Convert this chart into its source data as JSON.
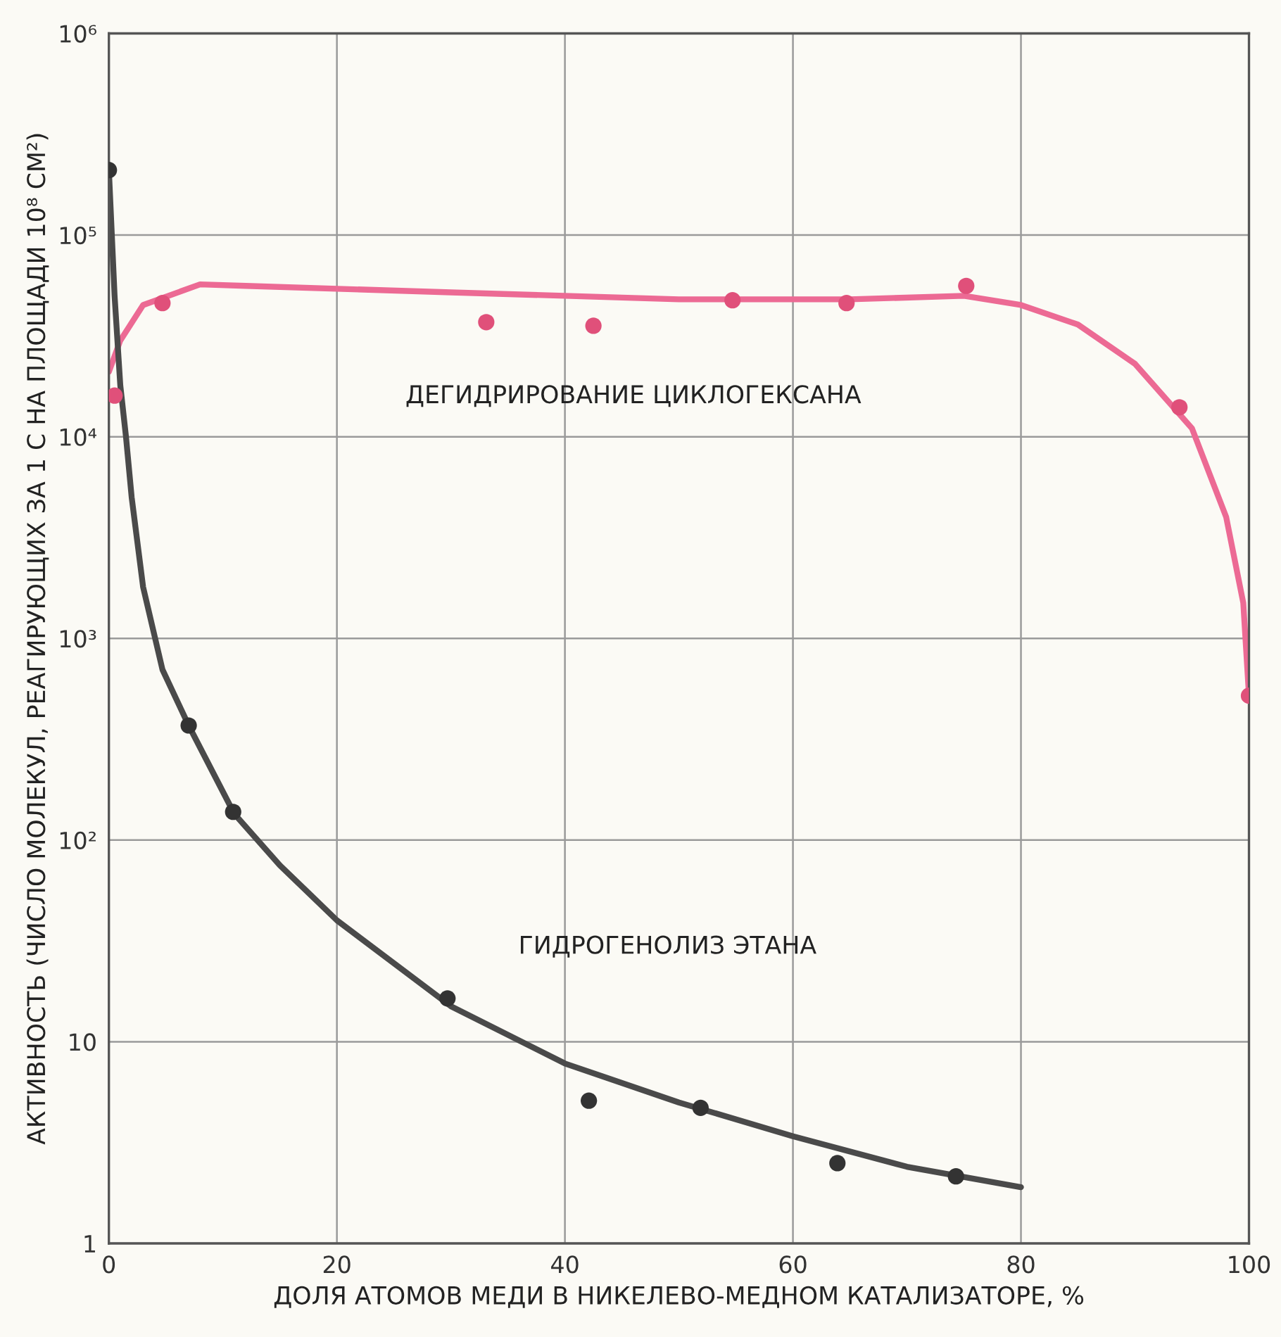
{
  "chart_data": {
    "type": "scatter",
    "xlabel": "ДОЛЯ АТОМОВ МЕДИ В НИКЕЛЕВО-МЕДНОМ КАТАЛИЗАТОРЕ, %",
    "ylabel": "АКТИВНОСТЬ (ЧИСЛО МОЛЕКУЛ, РЕАГИРУЮЩИХ ЗА 1 С НА ПЛОЩАДИ 10⁸ СМ²)",
    "log": "y",
    "grid": true,
    "xlim": [
      0,
      100
    ],
    "xticks": [
      0,
      20,
      40,
      60,
      80,
      100
    ],
    "ylim": [
      1,
      1000000
    ],
    "yticks": [
      {
        "value": 1,
        "label": "1"
      },
      {
        "value": 10,
        "label": "10"
      },
      {
        "value": 100,
        "label": "10²"
      },
      {
        "value": 1000,
        "label": "10³"
      },
      {
        "value": 10000,
        "label": "10⁴"
      },
      {
        "value": 100000,
        "label": "10⁵"
      },
      {
        "value": 1000000,
        "label": "10⁶"
      }
    ],
    "series": [
      {
        "type": "line",
        "marker": "none",
        "color": "#ec6a94",
        "x": [
          0,
          1,
          3,
          8,
          12,
          30,
          50,
          65,
          75,
          80,
          85,
          90,
          95,
          98,
          99.5,
          100
        ],
        "values": [
          21000,
          30000,
          45000,
          57000,
          56000,
          52000,
          48000,
          48000,
          50000,
          45000,
          36000,
          23000,
          11000,
          4000,
          1500,
          520
        ]
      },
      {
        "type": "line",
        "marker": "none",
        "color": "#4a4a4a",
        "x": [
          0,
          0.5,
          1,
          1.5,
          2,
          3,
          4.7,
          7,
          11,
          15,
          20,
          30,
          40,
          50,
          60,
          70,
          80
        ],
        "values": [
          210000,
          50000,
          18000,
          10000,
          5000,
          1800,
          700,
          370,
          135,
          75,
          40,
          15,
          7.8,
          5,
          3.4,
          2.4,
          1.9
        ]
      },
      {
        "marker": "circle",
        "color": "#e0507a",
        "x": [
          0.5,
          4.7,
          33.1,
          42.5,
          54.7,
          64.7,
          75.2,
          93.9,
          100
        ],
        "values": [
          16000,
          46000,
          37000,
          35500,
          47500,
          46000,
          56000,
          14000,
          520
        ]
      },
      {
        "marker": "circle",
        "color": "#333333",
        "x": [
          0,
          7,
          10.9,
          29.7,
          42.1,
          51.9,
          63.9,
          74.3
        ],
        "values": [
          210000,
          370,
          138,
          16.4,
          5.1,
          4.7,
          2.5,
          2.15
        ]
      }
    ],
    "annotations": [
      "ДЕГИДРИРОВАНИЕ ЦИКЛОГЕКСАНА",
      "ГИДРОГЕНОЛИЗ ЭТАНА"
    ]
  }
}
